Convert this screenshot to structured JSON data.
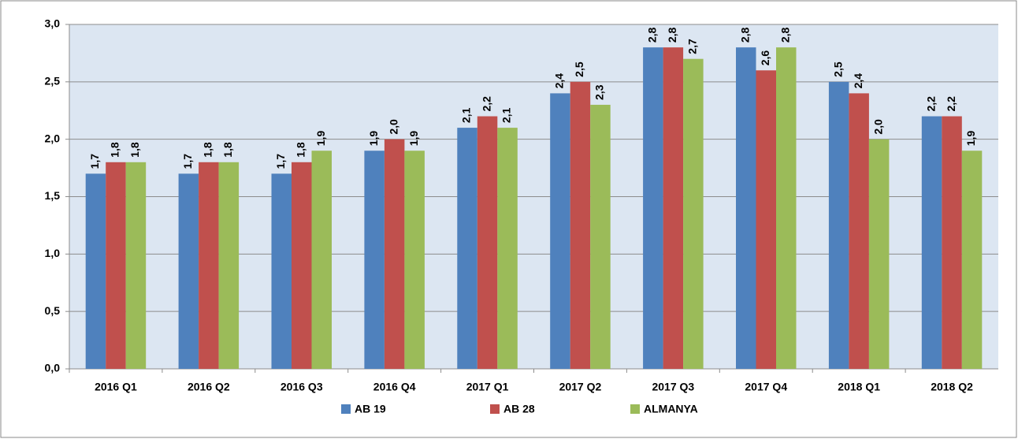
{
  "chart_data": {
    "type": "bar",
    "categories": [
      "2016 Q1",
      "2016 Q2",
      "2016 Q3",
      "2016 Q4",
      "2017 Q1",
      "2017 Q2",
      "2017 Q3",
      "2017 Q4",
      "2018 Q1",
      "2018 Q2"
    ],
    "series": [
      {
        "name": "AB 19",
        "color": "#4f81bd",
        "values": [
          1.7,
          1.7,
          1.7,
          1.9,
          2.1,
          2.4,
          2.8,
          2.8,
          2.5,
          2.2
        ],
        "value_labels": [
          "1,7",
          "1,7",
          "1,7",
          "1,9",
          "2,1",
          "2,4",
          "2,8",
          "2,8",
          "2,5",
          "2,2"
        ]
      },
      {
        "name": "AB 28",
        "color": "#c0504d",
        "values": [
          1.8,
          1.8,
          1.8,
          2.0,
          2.2,
          2.5,
          2.8,
          2.6,
          2.4,
          2.2
        ],
        "value_labels": [
          "1,8",
          "1,8",
          "1,8",
          "2,0",
          "2,2",
          "2,5",
          "2,8",
          "2,6",
          "2,4",
          "2,2"
        ]
      },
      {
        "name": "ALMANYA",
        "color": "#9bbb59",
        "values": [
          1.8,
          1.8,
          1.9,
          1.9,
          2.1,
          2.3,
          2.7,
          2.8,
          2.0,
          1.9
        ],
        "value_labels": [
          "1,8",
          "1,8",
          "1,9",
          "1,9",
          "2,1",
          "2,3",
          "2,7",
          "2,8",
          "2,0",
          "1,9"
        ]
      }
    ],
    "ylim": [
      0,
      3
    ],
    "yticks": [
      {
        "value": 0,
        "label": "0,0"
      },
      {
        "value": 0.5,
        "label": "0,5"
      },
      {
        "value": 1,
        "label": "1,0"
      },
      {
        "value": 1.5,
        "label": "1,5"
      },
      {
        "value": 2,
        "label": "2,0"
      },
      {
        "value": 2.5,
        "label": "2,5"
      },
      {
        "value": 3,
        "label": "3,0"
      }
    ],
    "grid": true,
    "legend": "bottom"
  }
}
